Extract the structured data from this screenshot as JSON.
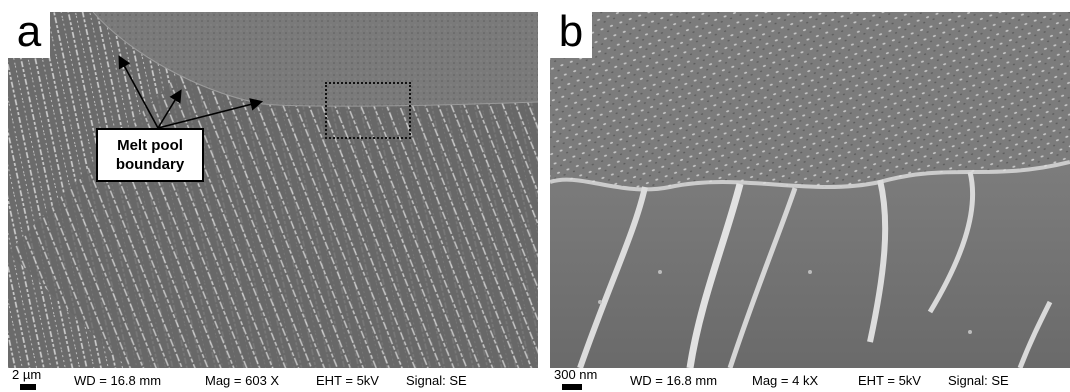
{
  "panel_a": {
    "label": "a",
    "annotation": "Melt pool\nboundary",
    "scale_label": "2 µm",
    "wd": "WD = 16.8 mm",
    "mag": "Mag = 603 X",
    "eht": "EHT = 5kV",
    "signal": "Signal: SE"
  },
  "panel_b": {
    "label": "b",
    "scale_label": "300 nm",
    "wd": "WD = 16.8 mm",
    "mag": "Mag = 4 kX",
    "eht": "EHT = 5kV",
    "signal": "Signal: SE"
  },
  "colors": {
    "matrix": "#6f6f6f",
    "cell_walls": "#d8d8d8",
    "annotation_box": "#ffffff"
  }
}
